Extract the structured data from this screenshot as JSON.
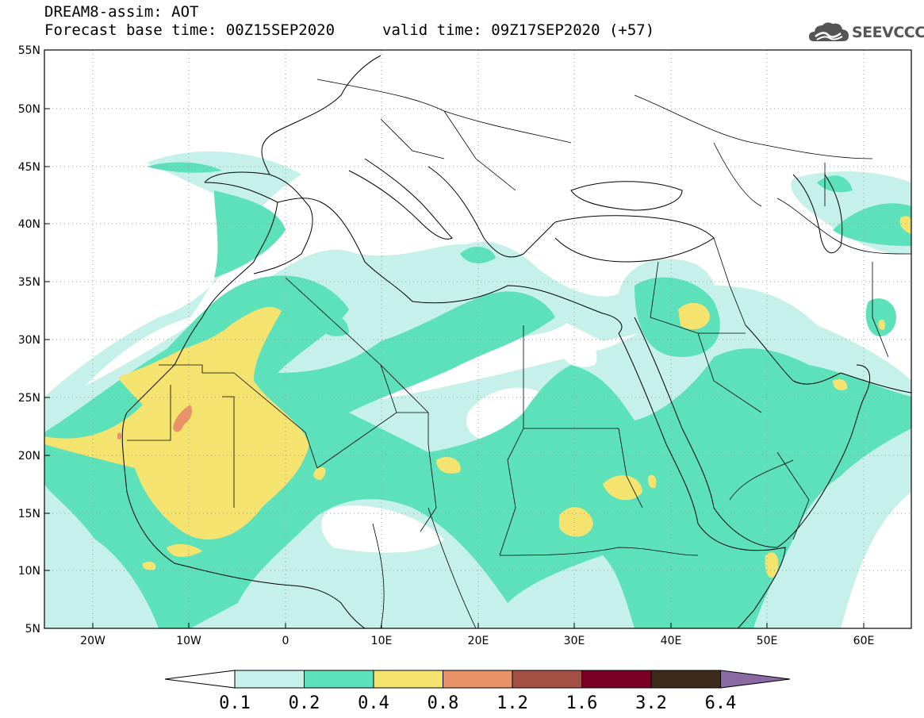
{
  "header": {
    "title": "DREAM8-assim: AOT",
    "base_time": "Forecast base time: 00Z15SEP2020",
    "valid_time": "valid time: 09Z17SEP2020 (+57)"
  },
  "logo": {
    "text": "SEEVCCC",
    "icon": "cloud-icon"
  },
  "axes": {
    "lat_labels": [
      "55N",
      "50N",
      "45N",
      "40N",
      "35N",
      "30N",
      "25N",
      "20N",
      "15N",
      "10N",
      "5N"
    ],
    "lat_values": [
      55,
      50,
      45,
      40,
      35,
      30,
      25,
      20,
      15,
      10,
      5
    ],
    "lon_labels": [
      "20W",
      "10W",
      "0",
      "10E",
      "20E",
      "30E",
      "40E",
      "50E",
      "60E"
    ],
    "lon_values": [
      -20,
      -10,
      0,
      10,
      20,
      30,
      40,
      50,
      60
    ],
    "lon_range": [
      -25,
      65
    ],
    "lat_range": [
      5,
      55
    ],
    "grid": "dotted"
  },
  "colorbar": {
    "labels": [
      "0.1",
      "0.2",
      "0.4",
      "0.8",
      "1.2",
      "1.6",
      "3.2",
      "6.4"
    ],
    "colors": [
      "#ffffff",
      "#c6f1ea",
      "#5ce1bb",
      "#f4e36e",
      "#e8926a",
      "#a55044",
      "#7a0026",
      "#3d2a18",
      "#8b6aa4"
    ]
  }
}
